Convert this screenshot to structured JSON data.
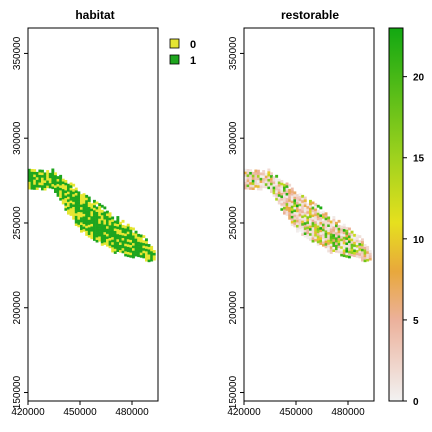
{
  "chart_data": [
    {
      "type": "heatmap",
      "title": "habitat",
      "xlim": [
        420000,
        495000
      ],
      "ylim": [
        145000,
        365000
      ],
      "x_ticks": [
        "420000",
        "450000",
        "480000"
      ],
      "y_ticks": [
        "150000",
        "200000",
        "250000",
        "300000",
        "350000"
      ],
      "grid": false,
      "legend": {
        "placement": "right",
        "entries": [
          {
            "label": "0",
            "color": "#e6e632"
          },
          {
            "label": "1",
            "color": "#1ea51e"
          }
        ]
      },
      "band_shape": {
        "axis": [
          [
            420000,
            276000
          ],
          [
            434000,
            275000
          ],
          [
            450000,
            257000
          ],
          [
            470000,
            243000
          ],
          [
            490000,
            233000
          ],
          [
            494000,
            231000
          ]
        ],
        "half_width": [
          6000,
          6000,
          12000,
          11000,
          6000,
          2500
        ],
        "habitat_fraction": 0.75
      }
    },
    {
      "type": "heatmap",
      "title": "restorable",
      "xlim": [
        420000,
        495000
      ],
      "ylim": [
        145000,
        365000
      ],
      "x_ticks": [
        "420000",
        "450000",
        "480000"
      ],
      "y_ticks": [
        "150000",
        "200000",
        "250000",
        "300000",
        "350000"
      ],
      "grid": false,
      "legend": {
        "placement": "right",
        "type": "continuous",
        "range": [
          0,
          23
        ],
        "ticks": [
          "0",
          "5",
          "10",
          "15",
          "20"
        ],
        "tick_values": [
          0,
          5,
          10,
          15,
          20
        ],
        "colors": [
          {
            "value": 0,
            "color": "#f2f2f2"
          },
          {
            "value": 5,
            "color": "#ecb19b"
          },
          {
            "value": 8,
            "color": "#e8a83c"
          },
          {
            "value": 11,
            "color": "#e6e01e"
          },
          {
            "value": 15,
            "color": "#9fd21e"
          },
          {
            "value": 23,
            "color": "#12a812"
          }
        ]
      }
    }
  ]
}
